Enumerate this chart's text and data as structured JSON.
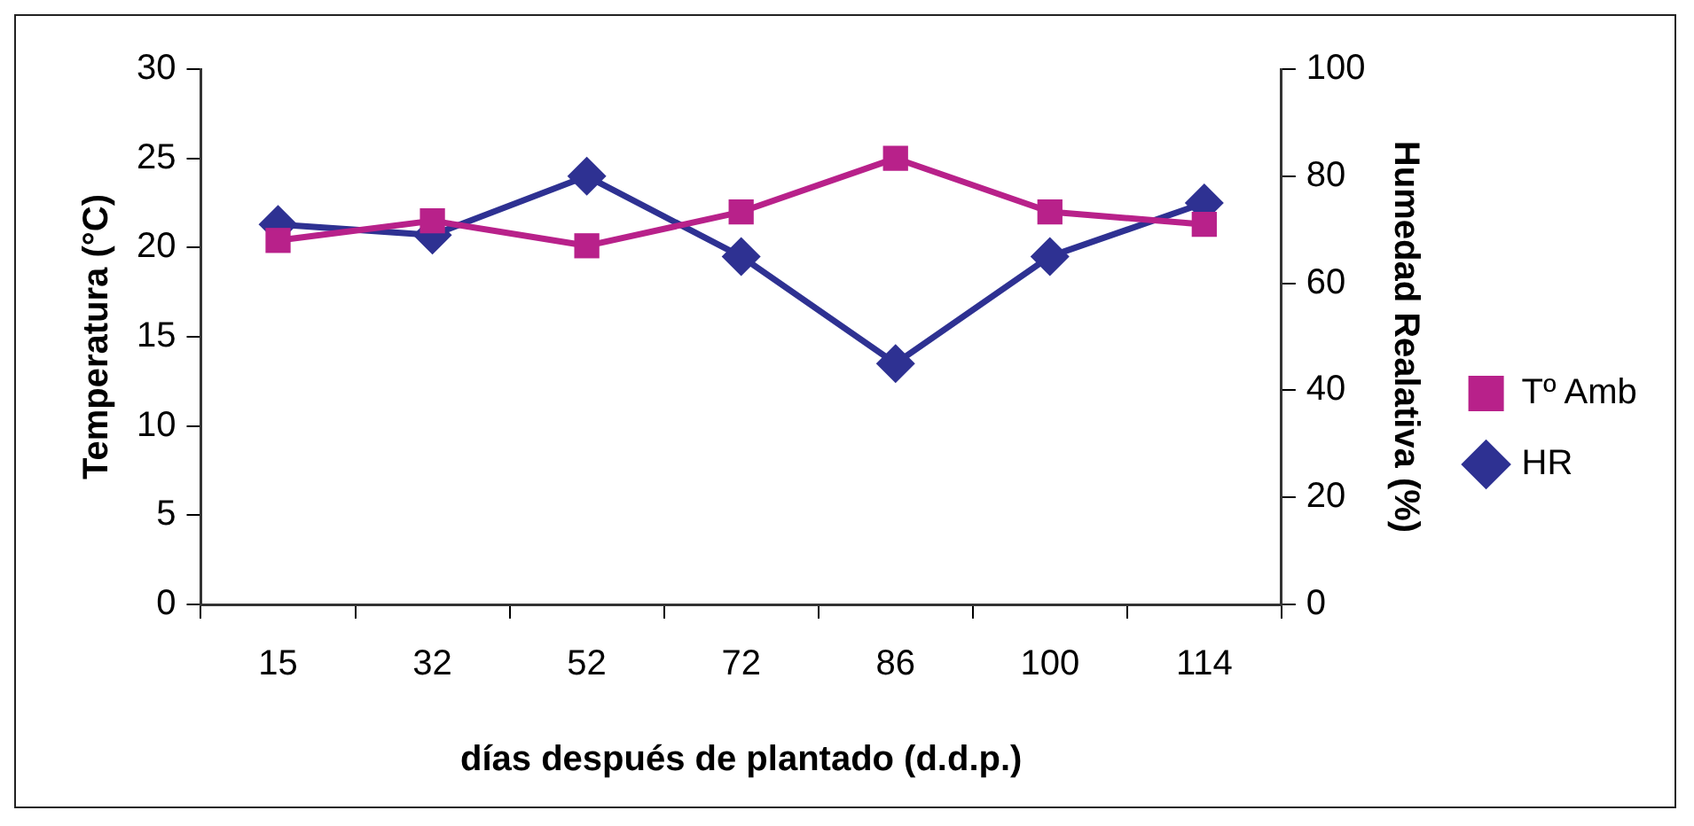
{
  "chart_data": {
    "type": "line",
    "xlabel": "días después de plantado (d.d.p.)",
    "ylabel": "Temperatura (°C)",
    "y2label": "Humedad Realativa (%)",
    "categories": [
      "15",
      "32",
      "52",
      "72",
      "86",
      "100",
      "114"
    ],
    "series": [
      {
        "name": "Tº Amb",
        "color": "#b8218a",
        "marker": "square",
        "values": [
          20.4,
          21.5,
          20.1,
          22,
          25,
          22,
          21.3
        ]
      },
      {
        "name": "HR",
        "color": "#2e3192",
        "marker": "diamond",
        "axis": "y2",
        "values": [
          71,
          69,
          80,
          65,
          45,
          65,
          75
        ]
      }
    ],
    "ylim": [
      0,
      30
    ],
    "yticks": [
      0,
      5,
      10,
      15,
      20,
      25,
      30
    ],
    "y2lim": [
      0,
      100
    ],
    "y2ticks": [
      0,
      20,
      40,
      60,
      80,
      100
    ],
    "grid": false,
    "legend": "right",
    "line_style": "solid"
  }
}
